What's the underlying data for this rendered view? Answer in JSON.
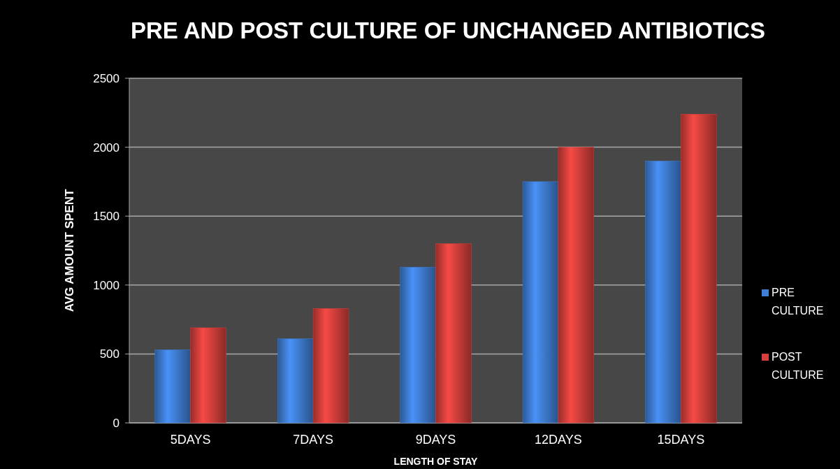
{
  "chart_data": {
    "type": "bar",
    "title": "PRE AND POST CULTURE OF UNCHANGED ANTIBIOTICS",
    "xlabel": "LENGTH OF STAY",
    "ylabel": "AVG AMOUNT SPENT",
    "categories": [
      "5DAYS",
      "7DAYS",
      "9DAYS",
      "12DAYS",
      "15DAYS"
    ],
    "series": [
      {
        "name": "PRE CULTURE",
        "color": "#3f7fd6",
        "values": [
          530,
          610,
          1130,
          1750,
          1900
        ]
      },
      {
        "name": "POST CULTURE",
        "color": "#d6403c",
        "values": [
          690,
          830,
          1300,
          2000,
          2240
        ]
      }
    ],
    "ylim": [
      0,
      2500
    ],
    "yticks": [
      0,
      500,
      1000,
      1500,
      2000,
      2500
    ],
    "grid": "y",
    "legend": "right"
  }
}
